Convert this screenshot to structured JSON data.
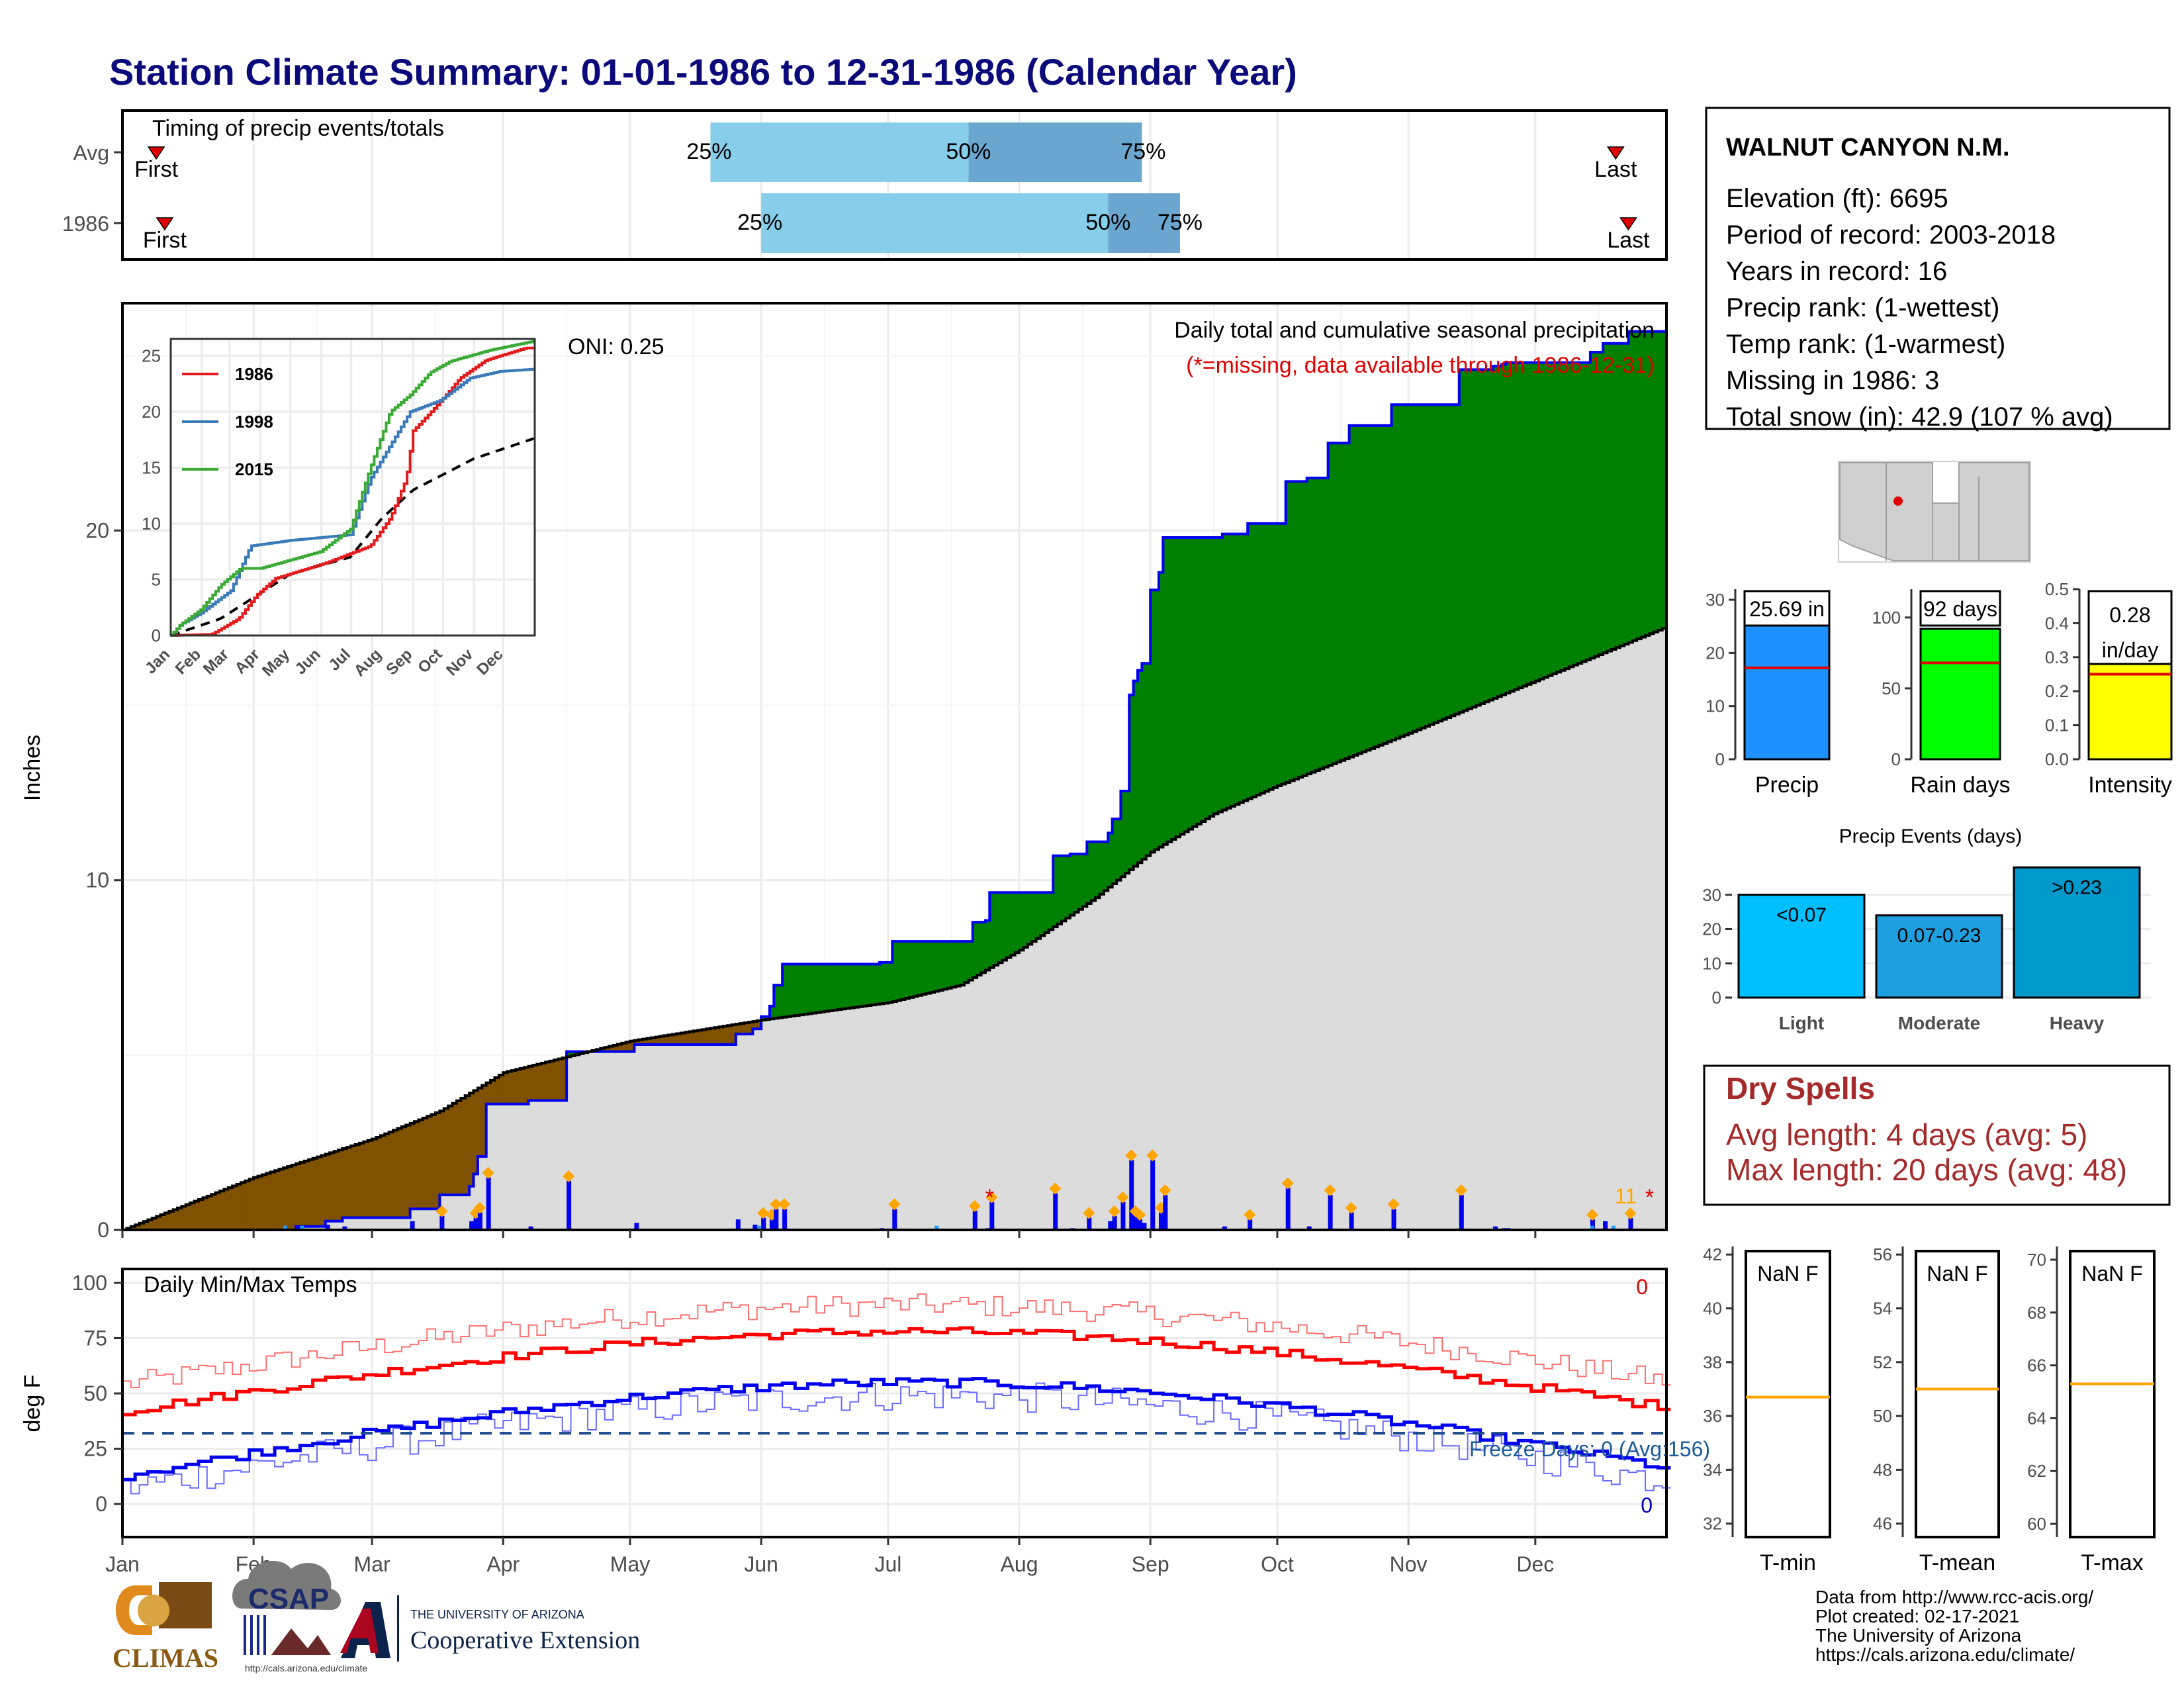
{
  "title": "Station Climate Summary: 01-01-1986 to 12-31-1986 (Calendar Year)",
  "timing": {
    "label": "Timing of precip events/totals",
    "rows": [
      {
        "name": "Avg",
        "first": "2000-01-09",
        "q25": "2000-05-20",
        "q50": "2000-07-20",
        "q75": "2000-08-30",
        "last": "2000-12-20"
      },
      {
        "name": "1986",
        "first": "1986-01-11",
        "q25": "1986-06-01",
        "q50": "1986-08-22",
        "q75": "1986-09-08",
        "last": "1986-12-23"
      }
    ],
    "first_label": "First",
    "last_label": "Last",
    "p25": "25%",
    "p50": "50%",
    "p75": "75%"
  },
  "main": {
    "ylabel": "Inches",
    "oni": "ONI: 0.25",
    "caption1": "Daily total and cumulative seasonal precipitation",
    "caption2": "(*=missing, data available through 1986-12-31)",
    "annot_count": "11",
    "ylim": [
      0,
      26.5
    ],
    "yticks": [
      0,
      10,
      20
    ],
    "xticks": [
      "Jan",
      "Feb",
      "Mar",
      "Apr",
      "May",
      "Jun",
      "Jul",
      "Aug",
      "Sep",
      "Oct",
      "Nov",
      "Dec"
    ]
  },
  "inset": {
    "yticks": [
      0,
      5,
      10,
      15,
      20,
      25
    ],
    "xticks": [
      "Jan",
      "Feb",
      "Mar",
      "Apr",
      "May",
      "Jun",
      "Jul",
      "Aug",
      "Sep",
      "Oct",
      "Nov",
      "Dec"
    ],
    "legend": [
      "1986",
      "1998",
      "2015"
    ],
    "colors": [
      "#e31a1c",
      "#3a7ab8",
      "#3aaa35"
    ]
  },
  "temps": {
    "label": "Daily Min/Max Temps",
    "ylabel": "deg F",
    "freeze": "Freeze Days: 0 (Avg:156)",
    "top_count": "0",
    "bottom_count": "0",
    "yticks": [
      0,
      25,
      50,
      75,
      100
    ],
    "xticks": [
      "Jan",
      "Feb",
      "Mar",
      "Apr",
      "May",
      "Jun",
      "Jul",
      "Aug",
      "Sep",
      "Oct",
      "Nov",
      "Dec"
    ]
  },
  "station": {
    "name": "WALNUT CANYON N.M.",
    "lines": [
      "Elevation (ft): 6695",
      "Period of record: 2003-2018",
      "Years in record: 16",
      "Precip rank:  (1-wettest)",
      "Temp rank:  (1-warmest)",
      "Missing in 1986: 3",
      "Total snow (in): 42.9 (107 % avg)"
    ]
  },
  "bars3": [
    {
      "label": "Precip",
      "value_text": "25.69 in",
      "value": 25.69,
      "avg": 17.2,
      "ylim": [
        0,
        32
      ],
      "ticks": [
        0,
        10,
        20,
        30
      ],
      "color": "#1e90ff"
    },
    {
      "label": "Rain days",
      "value_text": "92 days",
      "value": 92,
      "avg": 68,
      "ylim": [
        0,
        120
      ],
      "ticks": [
        0,
        50,
        100
      ],
      "color": "#00ff00"
    },
    {
      "label": "Intensity",
      "value_text": "0.28 in/day",
      "value": 0.28,
      "avg": 0.25,
      "ylim": [
        0,
        0.5
      ],
      "ticks": [
        0.0,
        0.1,
        0.2,
        0.3,
        0.4,
        0.5
      ],
      "color": "#ffff00"
    }
  ],
  "events": {
    "title": "Precip Events (days)",
    "categories": [
      "Light",
      "Moderate",
      "Heavy"
    ],
    "values": [
      30,
      24,
      38
    ],
    "labels": [
      "<0.07",
      "0.07-0.23",
      ">0.23"
    ],
    "colors": [
      "#00bfff",
      "#1ea0e0",
      "#0099cc"
    ],
    "ylim": [
      0,
      40
    ],
    "ticks": [
      0,
      10,
      20,
      30
    ]
  },
  "dry": {
    "title": "Dry Spells",
    "avg": "Avg length: 4 days (avg: 5)",
    "max": "Max length: 20 days (avg: 48)"
  },
  "tpanels": [
    {
      "label": "T-min",
      "value": "NaN F",
      "ticks": [
        32,
        34,
        36,
        38,
        40,
        42
      ],
      "ylim": [
        31.5,
        42.3
      ],
      "avg": 36.7
    },
    {
      "label": "T-mean",
      "value": "NaN F",
      "ticks": [
        46,
        48,
        50,
        52,
        54,
        56
      ],
      "ylim": [
        45.5,
        56.3
      ],
      "avg": 51
    },
    {
      "label": "T-max",
      "value": "NaN F",
      "ticks": [
        60,
        62,
        64,
        66,
        68,
        70
      ],
      "ylim": [
        59.5,
        70.5
      ],
      "avg": 65.3
    }
  ],
  "footer": [
    "Data from http://www.rcc-acis.org/",
    "Plot created: 02-17-2021",
    "The University of Arizona",
    "https://cals.arizona.edu/climate/"
  ],
  "logos": {
    "climas": "CLIMAS",
    "csap": "CSAP",
    "csap_url": "http://cals.arizona.edu/climate",
    "ua_small": "THE UNIVERSITY OF ARIZONA",
    "ua_big": "Cooperative Extension"
  }
}
